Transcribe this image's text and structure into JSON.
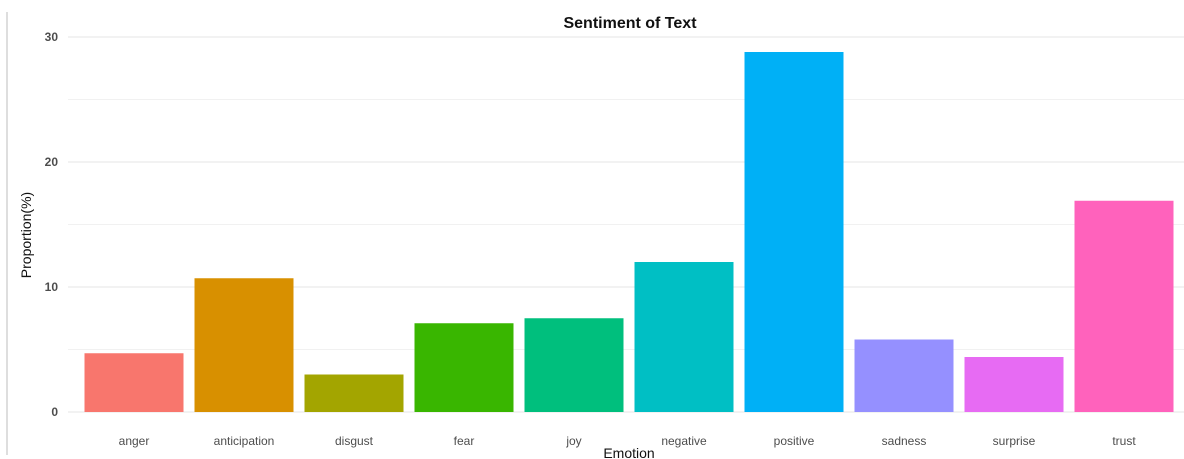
{
  "chart_data": {
    "type": "bar",
    "title": "Sentiment of Text",
    "xlabel": "Emotion",
    "ylabel": "Proportion(%)",
    "categories": [
      "anger",
      "anticipation",
      "disgust",
      "fear",
      "joy",
      "negative",
      "positive",
      "sadness",
      "surprise",
      "trust"
    ],
    "values": [
      4.7,
      10.7,
      3.0,
      7.1,
      7.5,
      12.0,
      28.8,
      5.8,
      4.4,
      16.9
    ],
    "colors": [
      "#F8766D",
      "#D89000",
      "#A3A500",
      "#39B600",
      "#00BF7D",
      "#00BFC4",
      "#00B0F6",
      "#9590FF",
      "#E76BF3",
      "#FF62BC"
    ],
    "yticks": [
      0,
      10,
      20,
      30
    ],
    "ylim": [
      0,
      30
    ],
    "grid": true,
    "legend": "none"
  }
}
